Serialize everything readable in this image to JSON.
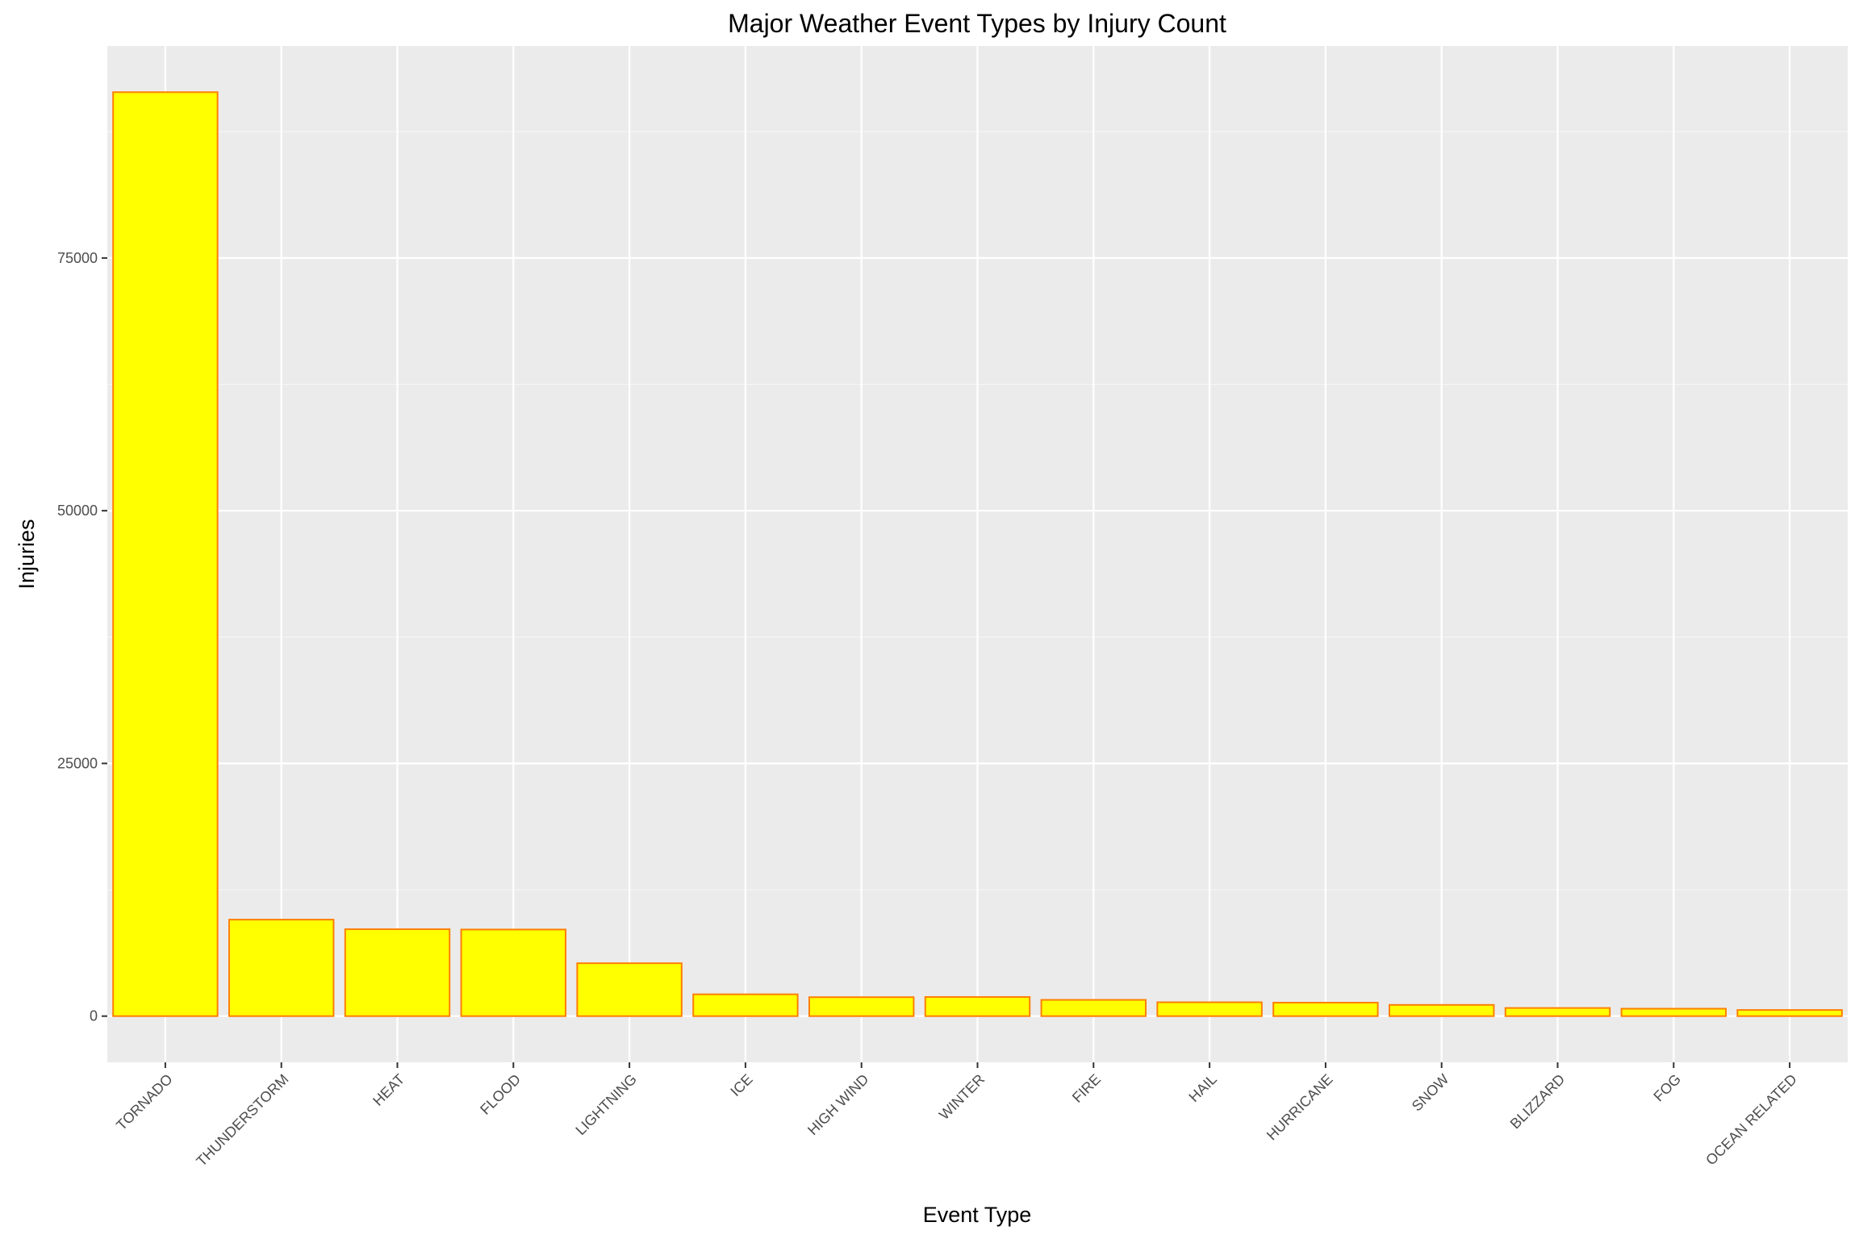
{
  "chart_data": {
    "type": "bar",
    "title": "Major Weather Event Types by Injury Count",
    "xlabel": "Event Type",
    "ylabel": "Injuries",
    "categories": [
      "TORNADO",
      "THUNDERSTORM",
      "HEAT",
      "FLOOD",
      "LIGHTNING",
      "ICE",
      "HIGH WIND",
      "WINTER",
      "FIRE",
      "HAIL",
      "HURRICANE",
      "SNOW",
      "BLIZZARD",
      "FOG",
      "OCEAN RELATED"
    ],
    "values": [
      91407,
      9545,
      8600,
      8566,
      5232,
      2158,
      1874,
      1891,
      1608,
      1371,
      1333,
      1110,
      805,
      734,
      608
    ],
    "ylim": [
      -4570,
      95977
    ],
    "yticks": [
      0,
      25000,
      50000,
      75000
    ],
    "ytick_labels": [
      "0",
      "25000",
      "50000",
      "75000"
    ],
    "grid": true,
    "colors": {
      "bar_fill": "#FFFF00",
      "bar_outline": "#FF7F00",
      "panel": "#EBEBEB",
      "grid_major": "#FFFFFF",
      "grid_minor": "#F5F5F5"
    }
  }
}
